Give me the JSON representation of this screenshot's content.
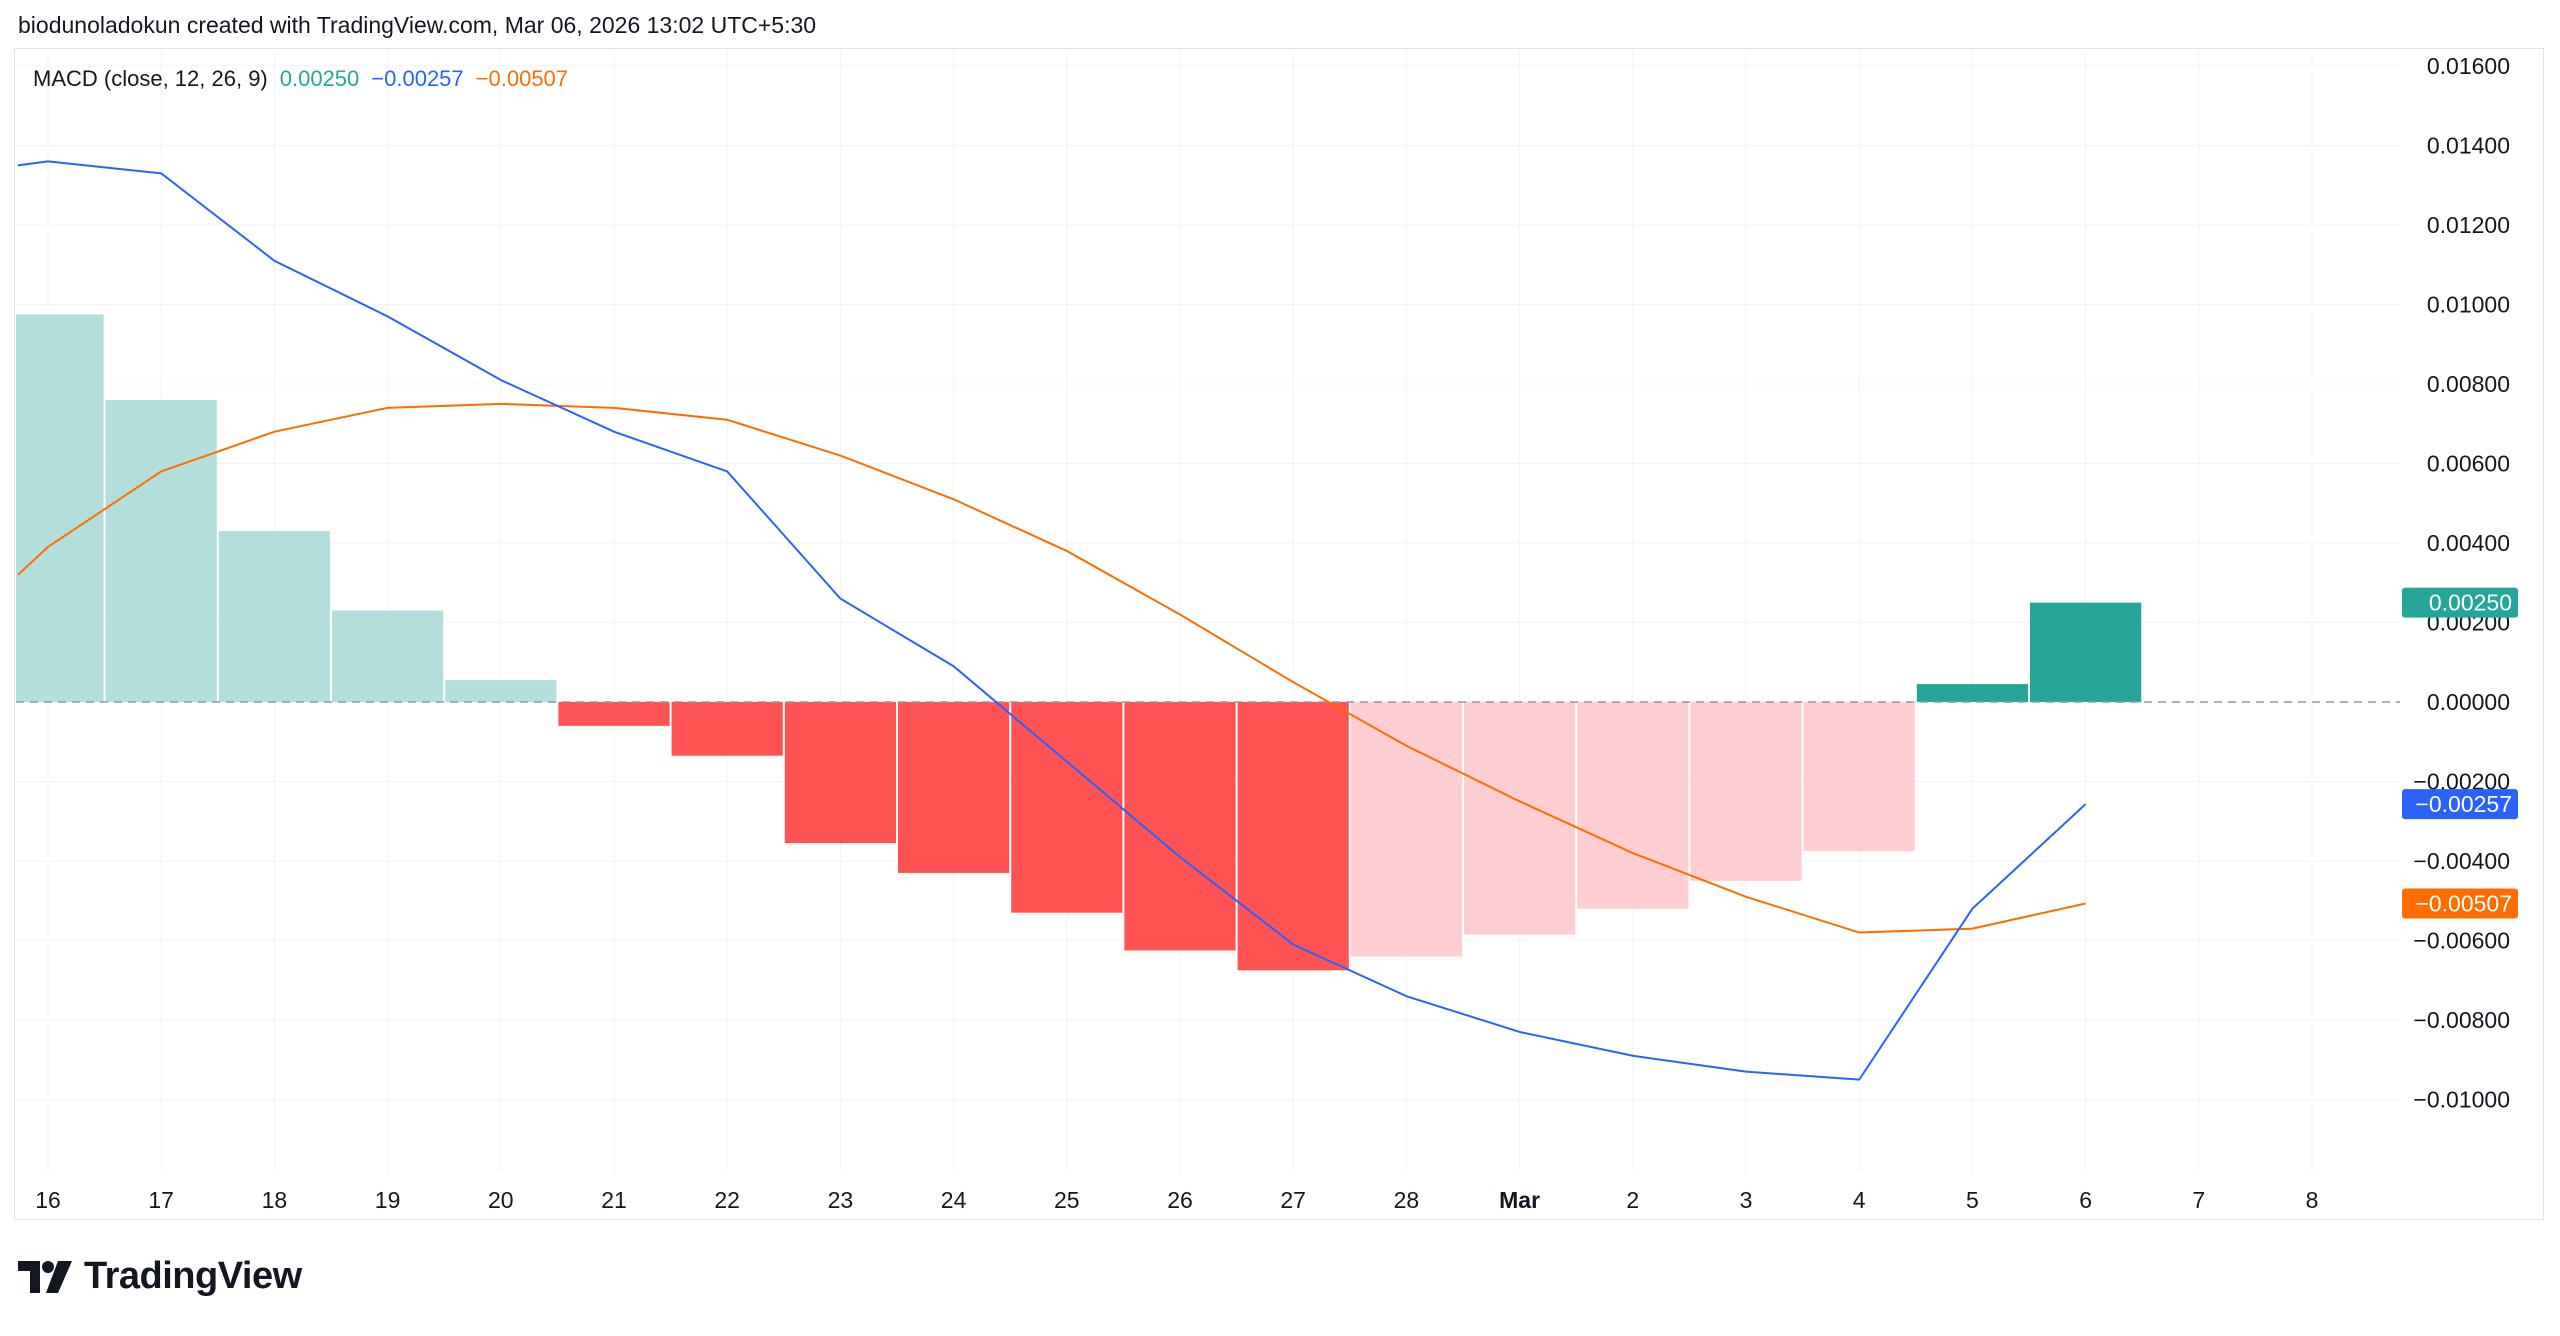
{
  "attribution": "biodunoladokun created with TradingView.com, Mar 06, 2026 13:02 UTC+5:30",
  "indicator": {
    "label": "MACD (close, 12, 26, 9)",
    "histogram_value": "0.00250",
    "macd_value": "−0.00257",
    "signal_value": "−0.00507"
  },
  "brand": {
    "name": "TradingView",
    "icon": "tradingview-logo-icon"
  },
  "colors": {
    "macd_line": "#2962ff",
    "signal_line": "#ff6d00",
    "hist_pos_strong": "#26a69a",
    "hist_pos_weak": "#b2dfdb",
    "hist_neg_strong": "#ff5252",
    "hist_neg_weak": "#ffcdd2"
  },
  "chart_data": {
    "type": "bar",
    "x": [
      "16",
      "17",
      "18",
      "19",
      "20",
      "21",
      "22",
      "23",
      "24",
      "25",
      "26",
      "27",
      "28",
      "Mar",
      "2",
      "3",
      "4",
      "5",
      "6",
      "7",
      "8"
    ],
    "ylim": [
      -0.012,
      0.0165
    ],
    "y_ticks": [
      "0.01600",
      "0.01400",
      "0.01200",
      "0.01000",
      "0.00800",
      "0.00600",
      "0.00400",
      "0.00200",
      "0.00000",
      "−0.00200",
      "−0.00400",
      "−0.00600",
      "−0.00800",
      "−0.01000"
    ],
    "y_tick_values": [
      0.016,
      0.014,
      0.012,
      0.01,
      0.008,
      0.006,
      0.004,
      0.002,
      0.0,
      -0.002,
      -0.004,
      -0.006,
      -0.008,
      -0.01
    ],
    "grid": true,
    "series": [
      {
        "type": "bar",
        "values": [
          0.00975,
          0.0076,
          0.0043,
          0.0023,
          0.00055,
          -0.0006,
          -0.00135,
          -0.00355,
          -0.0043,
          -0.0053,
          -0.00625,
          -0.00675,
          -0.0064,
          -0.00585,
          -0.0052,
          -0.0045,
          -0.00375,
          0.00045,
          0.0025,
          null,
          null
        ],
        "bar_styles": [
          "pos_weak",
          "pos_weak",
          "pos_weak",
          "pos_weak",
          "pos_weak",
          "neg_strong",
          "neg_strong",
          "neg_strong",
          "neg_strong",
          "neg_strong",
          "neg_strong",
          "neg_strong",
          "neg_weak",
          "neg_weak",
          "neg_weak",
          "neg_weak",
          "neg_weak",
          "pos_strong",
          "pos_strong",
          null,
          null
        ]
      },
      {
        "type": "line",
        "values": [
          0.0136,
          0.0133,
          0.0111,
          0.0097,
          0.0081,
          0.0068,
          0.0058,
          0.0026,
          0.0009,
          -0.0015,
          -0.0039,
          -0.0061,
          -0.0074,
          -0.0083,
          -0.0089,
          -0.0093,
          -0.0095,
          -0.0052,
          -0.00257,
          null,
          null
        ],
        "color": "#2962ff"
      },
      {
        "type": "line",
        "values": [
          0.0039,
          0.0058,
          0.0068,
          0.0074,
          0.0075,
          0.0074,
          0.0071,
          0.0062,
          0.0051,
          0.0038,
          0.0022,
          0.0005,
          -0.0011,
          -0.0025,
          -0.0038,
          -0.0049,
          -0.0058,
          -0.0057,
          -0.00507,
          null,
          null
        ],
        "color": "#ff6d00"
      }
    ],
    "start_point": {
      "macd": 0.0135,
      "signal": 0.0032
    },
    "price_tags": [
      {
        "value": 0.0025,
        "text": "0.00250",
        "color": "#26a69a"
      },
      {
        "value": -0.00257,
        "text": "−0.00257",
        "color": "#2962ff"
      },
      {
        "value": -0.00507,
        "text": "−0.00507",
        "color": "#ff6d00"
      }
    ]
  }
}
